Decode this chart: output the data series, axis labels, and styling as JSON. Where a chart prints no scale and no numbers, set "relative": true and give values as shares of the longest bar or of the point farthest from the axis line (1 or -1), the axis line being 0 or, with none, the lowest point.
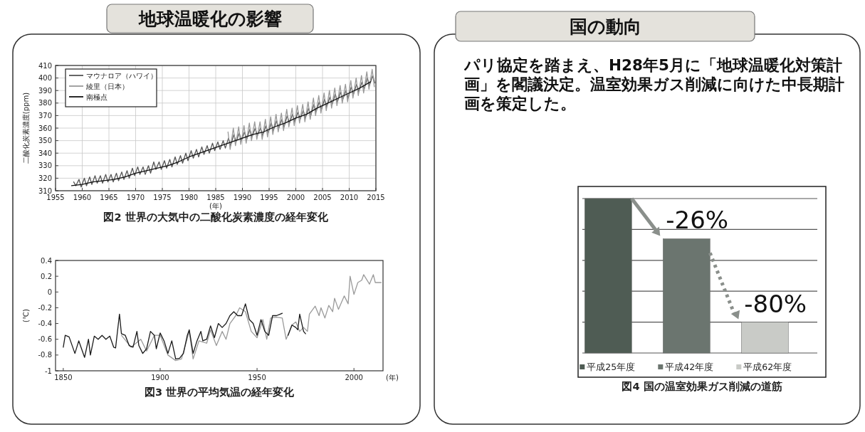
{
  "chart_data": [
    {
      "type": "other",
      "title": "地球温暖化の影響"
    },
    {
      "type": "line",
      "xlabel": "(年)",
      "ylabel": "二酸化炭素濃度(ppm)",
      "xlim": [
        1955,
        2015
      ],
      "ylim": [
        310,
        410
      ],
      "xticks": [
        1955,
        1960,
        1965,
        1970,
        1975,
        1980,
        1985,
        1990,
        1995,
        2000,
        2005,
        2010,
        2015
      ],
      "yticks": [
        310,
        320,
        330,
        340,
        350,
        360,
        370,
        380,
        390,
        400,
        410
      ],
      "grid": true,
      "legend": "top left",
      "annotations": [
        "図2 世界の大気中の二酸化炭素濃度の経年変化"
      ],
      "series": [
        {
          "name": "マウナロア（ハワイ）",
          "color": "#555555",
          "x": [
            1958.4,
            1958.8,
            1959.4,
            1959.8,
            1960.4,
            1960.8,
            1961.4,
            1961.8,
            1962.4,
            1962.8,
            1963.4,
            1963.8,
            1964.4,
            1964.8,
            1965.4,
            1965.8,
            1966.4,
            1966.8,
            1967.4,
            1967.8,
            1968.4,
            1968.8,
            1969.4,
            1969.8,
            1970.4,
            1970.8,
            1971.4,
            1971.8,
            1972.4,
            1972.8,
            1973.4,
            1973.8,
            1974.4,
            1974.8,
            1975.4,
            1975.8,
            1976.4,
            1976.8,
            1977.4,
            1977.8,
            1978.4,
            1978.8,
            1979.4,
            1979.8,
            1980.4,
            1980.8,
            1981.4,
            1981.8,
            1982.4,
            1982.8,
            1983.4,
            1983.8,
            1984.4,
            1984.8,
            1985.4,
            1985.8,
            1986.4,
            1986.8,
            1987.4,
            1987.8,
            1988.4,
            1988.8,
            1989.4,
            1989.8,
            1990.4,
            1990.8,
            1991.4,
            1991.8,
            1992.4,
            1992.8,
            1993.4,
            1993.8,
            1994.4,
            1994.8,
            1995.4,
            1995.8,
            1996.4,
            1996.8,
            1997.4,
            1997.8,
            1998.4,
            1998.8,
            1999.4,
            1999.8,
            2000.4,
            2000.8,
            2001.4,
            2001.8,
            2002.4,
            2002.8,
            2003.4,
            2003.8,
            2004.4,
            2004.8,
            2005.4,
            2005.8,
            2006.4,
            2006.8,
            2007.4,
            2007.8,
            2008.4,
            2008.8,
            2009.4,
            2009.8,
            2010.4,
            2010.8,
            2011.4,
            2011.8,
            2012.4,
            2012.8,
            2013.4,
            2013.8,
            2014.4,
            2014.8
          ],
          "values": [
            317,
            314,
            319,
            313,
            320,
            314,
            321,
            315,
            322,
            316,
            322,
            316,
            323,
            317,
            323,
            317,
            324,
            318,
            325,
            319,
            326,
            320,
            328,
            322,
            329,
            323,
            329,
            323,
            330,
            324,
            333,
            327,
            333,
            327,
            334,
            328,
            335,
            329,
            337,
            331,
            338,
            332,
            340,
            334,
            342,
            336,
            343,
            337,
            345,
            339,
            346,
            340,
            348,
            342,
            349,
            343,
            350,
            344,
            352,
            346,
            355,
            349,
            356,
            350,
            357,
            351,
            359,
            353,
            360,
            354,
            360,
            354,
            362,
            356,
            364,
            358,
            366,
            360,
            367,
            361,
            370,
            364,
            371,
            365,
            373,
            367,
            374,
            368,
            376,
            370,
            379,
            373,
            381,
            375,
            383,
            377,
            385,
            379,
            387,
            381,
            389,
            383,
            390,
            384,
            393,
            387,
            395,
            389,
            397,
            391,
            400,
            394,
            402,
            396
          ]
        },
        {
          "name": "綾里（日本）",
          "color": "#999999",
          "x": [
            1987.3,
            1987.7,
            1988.3,
            1988.7,
            1989.3,
            1989.7,
            1990.3,
            1990.7,
            1991.3,
            1991.7,
            1992.3,
            1992.7,
            1993.3,
            1993.7,
            1994.3,
            1994.7,
            1995.3,
            1995.7,
            1996.3,
            1996.7,
            1997.3,
            1997.7,
            1998.3,
            1998.7,
            1999.3,
            1999.7,
            2000.3,
            2000.7,
            2001.3,
            2001.7,
            2002.3,
            2002.7,
            2003.3,
            2003.7,
            2004.3,
            2004.7,
            2005.3,
            2005.7,
            2006.3,
            2006.7,
            2007.3,
            2007.7,
            2008.3,
            2008.7,
            2009.3,
            2009.7,
            2010.3,
            2010.7,
            2011.3,
            2011.7,
            2012.3,
            2012.7,
            2013.3,
            2013.7,
            2014.3,
            2014.7
          ],
          "values": [
            357,
            343,
            360,
            346,
            361,
            347,
            362,
            348,
            364,
            350,
            365,
            351,
            365,
            351,
            367,
            353,
            369,
            355,
            371,
            357,
            372,
            358,
            375,
            361,
            376,
            362,
            378,
            364,
            379,
            365,
            381,
            367,
            384,
            370,
            386,
            372,
            388,
            374,
            390,
            376,
            392,
            378,
            394,
            380,
            395,
            381,
            398,
            384,
            400,
            386,
            402,
            388,
            405,
            391,
            407,
            393
          ]
        },
        {
          "name": "南極点",
          "color": "#111111",
          "x": [
            1958,
            1960,
            1962,
            1964,
            1966,
            1968,
            1970,
            1972,
            1974,
            1976,
            1978,
            1980,
            1982,
            1984,
            1986,
            1988,
            1990,
            1992,
            1994,
            1996,
            1998,
            2000,
            2002,
            2004,
            2006,
            2008,
            2010,
            2012,
            2014
          ],
          "values": [
            314,
            315,
            317,
            318,
            319,
            321,
            324,
            326,
            328,
            330,
            333,
            337,
            340,
            343,
            346,
            349,
            352,
            355,
            357,
            361,
            364,
            368,
            371,
            376,
            380,
            384,
            388,
            392,
            397
          ]
        }
      ]
    },
    {
      "type": "line",
      "xlabel": "(年)",
      "ylabel": "(℃)",
      "xlim": [
        1846,
        2015
      ],
      "ylim": [
        -1,
        0.4
      ],
      "xticks": [
        1850,
        1900,
        1950,
        2000
      ],
      "yticks": [
        -1,
        -0.8,
        -0.6,
        -0.4,
        -0.2,
        0,
        0.2,
        0.4
      ],
      "annotations": [
        "図3 世界の平均気温の経年変化"
      ],
      "series": [
        {
          "color": "#9a9a9a",
          "x": [
            1880,
            1885,
            1890,
            1893,
            1897,
            1900,
            1904,
            1908,
            1911,
            1915,
            1917,
            1920,
            1924,
            1926,
            1929,
            1932,
            1934,
            1936,
            1939,
            1941,
            1944,
            1947,
            1950,
            1953,
            1955,
            1957,
            1960,
            1963,
            1965,
            1968,
            1970,
            1972,
            1974,
            1976,
            1977,
            1980,
            1982,
            1983,
            1985,
            1987,
            1989,
            1990,
            1992,
            1995,
            1997,
            1998,
            2000,
            2002,
            2004,
            2005,
            2008,
            2010,
            2011,
            2014
          ],
          "values": [
            -0.55,
            -0.7,
            -0.6,
            -0.75,
            -0.55,
            -0.55,
            -0.8,
            -0.87,
            -0.85,
            -0.5,
            -0.85,
            -0.62,
            -0.65,
            -0.48,
            -0.68,
            -0.5,
            -0.6,
            -0.4,
            -0.3,
            -0.2,
            -0.25,
            -0.5,
            -0.58,
            -0.35,
            -0.6,
            -0.33,
            -0.32,
            -0.33,
            -0.6,
            -0.42,
            -0.38,
            -0.5,
            -0.45,
            -0.5,
            -0.28,
            -0.18,
            -0.3,
            -0.2,
            -0.33,
            -0.17,
            -0.25,
            -0.08,
            -0.22,
            -0.05,
            -0.15,
            0.2,
            -0.03,
            0.12,
            0.15,
            0.22,
            0.1,
            0.22,
            0.12,
            0.12
          ]
        },
        {
          "color": "#1a1a1a",
          "x": [
            1850,
            1851,
            1853,
            1856,
            1858,
            1861,
            1863,
            1864,
            1866,
            1868,
            1870,
            1872,
            1874,
            1876,
            1877,
            1879,
            1880,
            1882,
            1884,
            1886,
            1888,
            1889,
            1891,
            1893,
            1895,
            1897,
            1898,
            1900,
            1902,
            1904,
            1906,
            1908,
            1910,
            1912,
            1914,
            1915,
            1917,
            1919,
            1921,
            1922,
            1924,
            1926,
            1928,
            1930,
            1932,
            1934,
            1936,
            1938,
            1940,
            1942,
            1944,
            1946,
            1948,
            1950,
            1952,
            1954,
            1956,
            1958,
            1960,
            1962,
            1963,
            1964,
            1966,
            1968,
            1970,
            1971,
            1972,
            1974,
            1975
          ],
          "values": [
            -0.7,
            -0.55,
            -0.57,
            -0.78,
            -0.62,
            -0.83,
            -0.6,
            -0.8,
            -0.56,
            -0.6,
            -0.55,
            -0.6,
            -0.56,
            -0.7,
            -0.71,
            -0.28,
            -0.53,
            -0.55,
            -0.68,
            -0.7,
            -0.5,
            -0.68,
            -0.78,
            -0.72,
            -0.5,
            -0.55,
            -0.72,
            -0.52,
            -0.62,
            -0.78,
            -0.62,
            -0.85,
            -0.84,
            -0.78,
            -0.55,
            -0.48,
            -0.78,
            -0.62,
            -0.5,
            -0.62,
            -0.6,
            -0.43,
            -0.58,
            -0.4,
            -0.45,
            -0.4,
            -0.3,
            -0.25,
            -0.3,
            -0.3,
            -0.15,
            -0.35,
            -0.4,
            -0.55,
            -0.35,
            -0.5,
            -0.55,
            -0.3,
            -0.3,
            -0.28,
            -0.27,
            null,
            -0.55,
            -0.42,
            -0.45,
            -0.48,
            -0.28,
            -0.5,
            -0.53
          ]
        }
      ]
    },
    {
      "type": "other",
      "title": "国の動向",
      "annotations": [
        "パリ協定を踏まえ、H28年5月に「地球温暖化対策計画」を閣議決定。温室効果ガス削減に向けた中長期計画を策定した。"
      ]
    },
    {
      "type": "bar",
      "relative": true,
      "categories": [
        "平成25年度",
        "平成42年度",
        "平成62年度"
      ],
      "values": [
        1,
        0.74,
        0.2
      ],
      "colors": [
        "#4f5c54",
        "#6b756f",
        "#c9cbc7"
      ],
      "grid": "y",
      "annotations": [
        "-26%",
        "-80%",
        "図4 国の温室効果ガス削減の道筋"
      ]
    }
  ]
}
